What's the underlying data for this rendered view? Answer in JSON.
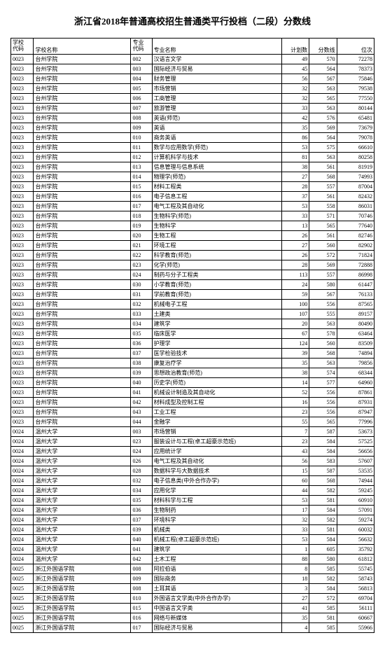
{
  "title": "浙江省2018年普通高校招生普通类平行投档（二段）分数线",
  "headers": {
    "schoolCode": "学校\n代码",
    "schoolName": "学校名称",
    "majorCode": "专业\n代码",
    "majorName": "专业名称",
    "plan": "计划数",
    "score": "分数线",
    "rank": "位次"
  },
  "rows": [
    [
      "0023",
      "台州学院",
      "002",
      "汉语言文学",
      "49",
      "570",
      "72278"
    ],
    [
      "0023",
      "台州学院",
      "003",
      "国际经济与贸易",
      "45",
      "564",
      "78373"
    ],
    [
      "0023",
      "台州学院",
      "004",
      "财务管理",
      "56",
      "567",
      "75846"
    ],
    [
      "0023",
      "台州学院",
      "005",
      "市场营销",
      "32",
      "563",
      "79538"
    ],
    [
      "0023",
      "台州学院",
      "006",
      "工商管理",
      "32",
      "565",
      "77550"
    ],
    [
      "0023",
      "台州学院",
      "007",
      "旅游管理",
      "33",
      "563",
      "80144"
    ],
    [
      "0023",
      "台州学院",
      "008",
      "英语(师范)",
      "42",
      "576",
      "65481"
    ],
    [
      "0023",
      "台州学院",
      "009",
      "英语",
      "35",
      "569",
      "73679"
    ],
    [
      "0023",
      "台州学院",
      "010",
      "商务英语",
      "86",
      "564",
      "79078"
    ],
    [
      "0023",
      "台州学院",
      "011",
      "数学与应用数学(师范)",
      "53",
      "575",
      "66610"
    ],
    [
      "0023",
      "台州学院",
      "012",
      "计算机科学与技术",
      "81",
      "563",
      "80258"
    ],
    [
      "0023",
      "台州学院",
      "013",
      "信息管理与信息系统",
      "38",
      "561",
      "81919"
    ],
    [
      "0023",
      "台州学院",
      "014",
      "物理学(师范)",
      "27",
      "568",
      "74993"
    ],
    [
      "0023",
      "台州学院",
      "015",
      "材料工程类",
      "28",
      "557",
      "87004"
    ],
    [
      "0023",
      "台州学院",
      "016",
      "电子信息工程",
      "37",
      "561",
      "82432"
    ],
    [
      "0023",
      "台州学院",
      "017",
      "电气工程及其自动化",
      "53",
      "558",
      "86031"
    ],
    [
      "0023",
      "台州学院",
      "018",
      "生物科学(师范)",
      "33",
      "571",
      "70746"
    ],
    [
      "0023",
      "台州学院",
      "019",
      "生物科学",
      "13",
      "565",
      "77640"
    ],
    [
      "0023",
      "台州学院",
      "020",
      "生物工程",
      "26",
      "561",
      "82746"
    ],
    [
      "0023",
      "台州学院",
      "021",
      "环境工程",
      "27",
      "560",
      "82902"
    ],
    [
      "0023",
      "台州学院",
      "022",
      "科学教育(师范)",
      "26",
      "572",
      "71824"
    ],
    [
      "0023",
      "台州学院",
      "023",
      "化学(师范)",
      "28",
      "569",
      "72888"
    ],
    [
      "0023",
      "台州学院",
      "024",
      "制药与分子工程类",
      "113",
      "557",
      "86998"
    ],
    [
      "0023",
      "台州学院",
      "030",
      "小学教育(师范)",
      "24",
      "580",
      "61447"
    ],
    [
      "0023",
      "台州学院",
      "031",
      "学前教育(师范)",
      "59",
      "567",
      "76133"
    ],
    [
      "0023",
      "台州学院",
      "032",
      "机械电子工程",
      "100",
      "556",
      "87565"
    ],
    [
      "0023",
      "台州学院",
      "033",
      "土建类",
      "107",
      "555",
      "89157"
    ],
    [
      "0023",
      "台州学院",
      "034",
      "建筑学",
      "20",
      "563",
      "80490"
    ],
    [
      "0023",
      "台州学院",
      "035",
      "临床医学",
      "67",
      "578",
      "63464"
    ],
    [
      "0023",
      "台州学院",
      "036",
      "护理学",
      "124",
      "560",
      "83509"
    ],
    [
      "0023",
      "台州学院",
      "037",
      "医学检验技术",
      "39",
      "568",
      "74894"
    ],
    [
      "0023",
      "台州学院",
      "038",
      "康复治疗学",
      "35",
      "563",
      "79856"
    ],
    [
      "0023",
      "台州学院",
      "039",
      "思想政治教育(师范)",
      "38",
      "574",
      "68344"
    ],
    [
      "0023",
      "台州学院",
      "040",
      "历史学(师范)",
      "14",
      "577",
      "64960"
    ],
    [
      "0023",
      "台州学院",
      "041",
      "机械设计制造及其自动化",
      "52",
      "556",
      "87861"
    ],
    [
      "0023",
      "台州学院",
      "042",
      "材料成型及控制工程",
      "16",
      "556",
      "87931"
    ],
    [
      "0023",
      "台州学院",
      "043",
      "工业工程",
      "23",
      "556",
      "87947"
    ],
    [
      "0023",
      "台州学院",
      "044",
      "金融学",
      "55",
      "565",
      "77996"
    ],
    [
      "0024",
      "温州大学",
      "003",
      "市场营销",
      "7",
      "587",
      "53673"
    ],
    [
      "0024",
      "温州大学",
      "023",
      "服装设计与工程(卓工超豪示范班)",
      "23",
      "584",
      "57525"
    ],
    [
      "0024",
      "温州大学",
      "024",
      "应用统计学",
      "43",
      "584",
      "56656"
    ],
    [
      "0024",
      "温州大学",
      "026",
      "电气工程及其自动化",
      "56",
      "583",
      "57607"
    ],
    [
      "0024",
      "温州大学",
      "028",
      "数据科学与大数据技术",
      "15",
      "587",
      "53535"
    ],
    [
      "0024",
      "温州大学",
      "032",
      "电子信息类(中外合作办学)",
      "60",
      "568",
      "74944"
    ],
    [
      "0024",
      "温州大学",
      "034",
      "应用化学",
      "44",
      "582",
      "59245"
    ],
    [
      "0024",
      "温州大学",
      "035",
      "材料科学与工程",
      "53",
      "581",
      "60910"
    ],
    [
      "0024",
      "温州大学",
      "036",
      "生物制药",
      "17",
      "584",
      "57091"
    ],
    [
      "0024",
      "温州大学",
      "037",
      "环境科学",
      "32",
      "582",
      "59274"
    ],
    [
      "0024",
      "温州大学",
      "039",
      "机械类",
      "33",
      "581",
      "60032"
    ],
    [
      "0024",
      "温州大学",
      "040",
      "机械工程(卓工超豪示范班)",
      "53",
      "584",
      "56632"
    ],
    [
      "0024",
      "温州大学",
      "041",
      "建筑学",
      "1",
      "605",
      "35792"
    ],
    [
      "0024",
      "温州大学",
      "042",
      "土木工程",
      "88",
      "580",
      "61812"
    ],
    [
      "0025",
      "浙江外国语学院",
      "008",
      "阿拉伯语",
      "8",
      "585",
      "55745"
    ],
    [
      "0025",
      "浙江外国语学院",
      "009",
      "国际商务",
      "18",
      "582",
      "58743"
    ],
    [
      "0025",
      "浙江外国语学院",
      "008",
      "土耳其语",
      "3",
      "584",
      "56813"
    ],
    [
      "0025",
      "浙江外国语学院",
      "010",
      "外国语言文学类(中外合作办学)",
      "27",
      "572",
      "69704"
    ],
    [
      "0025",
      "浙江外国语学院",
      "015",
      "中国语言文学类",
      "41",
      "585",
      "56111"
    ],
    [
      "0025",
      "浙江外国语学院",
      "016",
      "网络与新媒体",
      "35",
      "581",
      "60667"
    ],
    [
      "0025",
      "浙江外国语学院",
      "017",
      "国际经济与贸易",
      "4",
      "585",
      "55966"
    ]
  ]
}
